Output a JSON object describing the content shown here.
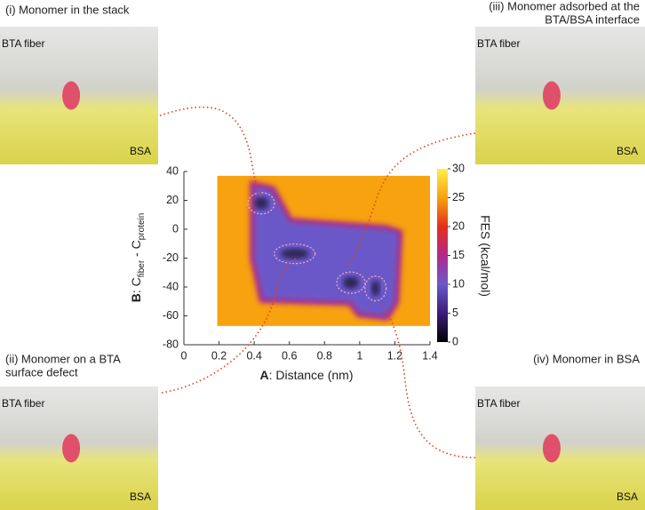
{
  "chart_data": {
    "type": "heatmap",
    "x_label_bold": "A",
    "x_label": ": Distance (nm)",
    "y_label_bold": "B",
    "y_label_parts": [
      ": C",
      "fiber",
      " - C",
      "protein"
    ],
    "colorbar_label": "FES (kcal/mol)",
    "xlim": [
      0,
      1.4
    ],
    "xticks": [
      0,
      0.2,
      0.4,
      0.6,
      0.8,
      1,
      1.2,
      1.4
    ],
    "ylim": [
      -80,
      40
    ],
    "yticks": [
      40,
      20,
      0,
      -20,
      -40,
      -60,
      -80
    ],
    "colorbar_lim": [
      0,
      30
    ],
    "colorbar_ticks": [
      0,
      5,
      10,
      15,
      20,
      25,
      30
    ],
    "colormap": [
      "#000000",
      "#3b1d7a",
      "#6a58c8",
      "#b02a8a",
      "#e3301c",
      "#f7a20e",
      "#fdf04e"
    ]
  },
  "panels": [
    {
      "title": [
        "(i) Monomer in the stack"
      ],
      "fiber_label": "BTA fiber",
      "protein_label": "BSA"
    },
    {
      "title": [
        "(ii) Monomer on a BTA",
        "surface defect"
      ],
      "fiber_label": "BTA fiber",
      "protein_label": "BSA"
    },
    {
      "title": [
        "(iii) Monomer adsorbed at the",
        "BTA/BSA interface"
      ],
      "fiber_label": "BTA fiber",
      "protein_label": "BSA"
    },
    {
      "title": [
        "(iv) Monomer in BSA"
      ],
      "fiber_label": "BTA fiber",
      "protein_label": "BSA"
    }
  ]
}
